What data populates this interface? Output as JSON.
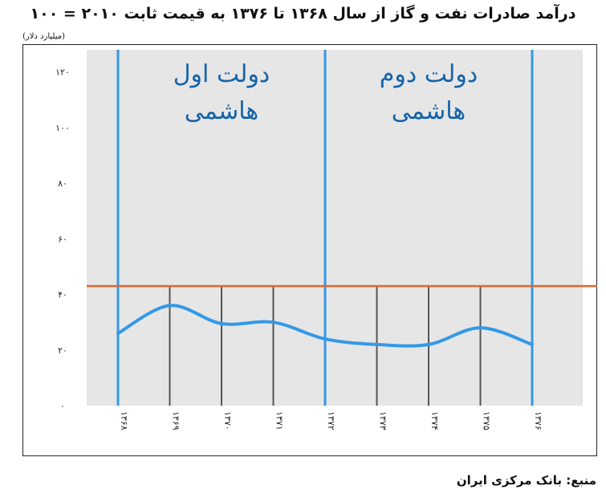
{
  "chart_data": {
    "type": "line",
    "title": "درآمد صادرات نفت و گاز از سال ۱۳۶۸ تا ۱۳۷۶ به قیمت ثابت ۲۰۱۰ = ۱۰۰",
    "unit_label": "(میلیارد دلار)",
    "x": [
      "۱۳۶۸",
      "۱۳۶۹",
      "۱۳۷۰",
      "۱۳۷۱",
      "۱۳۷۲",
      "۱۳۷۳",
      "۱۳۷۴",
      "۱۳۷۵",
      "۱۳۷۶"
    ],
    "y_ticks": [
      "۰",
      "۲۰",
      "۴۰",
      "۶۰",
      "۸۰",
      "۱۰۰",
      "۱۲۰"
    ],
    "y_tick_values": [
      0,
      20,
      40,
      60,
      80,
      100,
      120
    ],
    "ylim": [
      0,
      128
    ],
    "series": [
      {
        "values": [
          26,
          36,
          29.5,
          30,
          24,
          22,
          22,
          28,
          22
        ],
        "color": "#3399e6"
      }
    ],
    "reference_line": {
      "value": 43,
      "color": "#e8632a"
    },
    "eras": [
      {
        "line1": "دولت اول",
        "line2": "هاشمی",
        "start_index": 0,
        "end_index": 4
      },
      {
        "line1": "دولت دوم",
        "line2": "هاشمی",
        "start_index": 4,
        "end_index": 8
      }
    ],
    "era_line_color": "#3399e6",
    "year_line_color": "#555555",
    "plot_background": "#e6e6e6",
    "grid": false
  },
  "source": "منبع: بانک مرکزی ایران"
}
